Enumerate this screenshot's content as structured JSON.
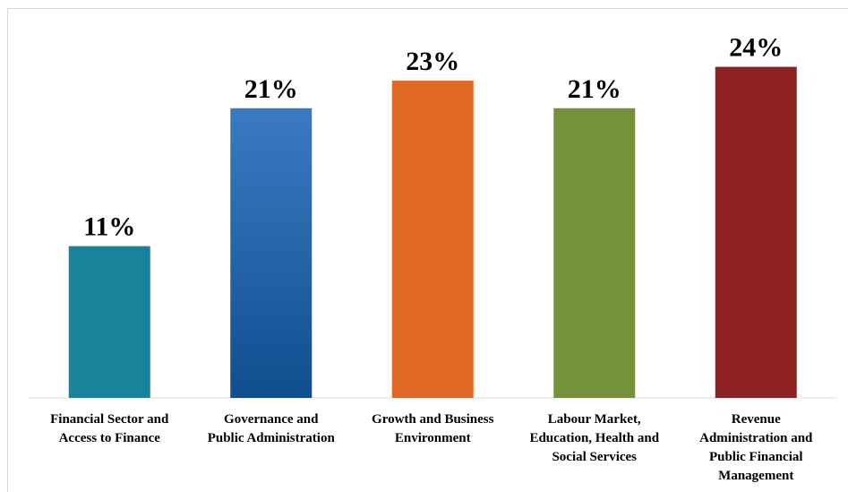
{
  "chart_data": {
    "type": "bar",
    "title": "",
    "xlabel": "",
    "ylabel": "",
    "ylim": [
      0,
      28
    ],
    "grid": false,
    "legend": "none",
    "categories": [
      [
        "Financial Sector and",
        "Access to Finance"
      ],
      [
        "Governance and",
        "Public Administration"
      ],
      [
        "Growth and Business",
        "Environment"
      ],
      [
        "Labour Market,",
        "Education, Health and",
        "Social Services"
      ],
      [
        "Revenue",
        "Administration and",
        "Public Financial",
        "Management"
      ]
    ],
    "values": [
      11,
      21,
      23,
      21,
      24
    ],
    "value_labels": [
      "11%",
      "21%",
      "23%",
      "21%",
      "24%"
    ],
    "colors": [
      "#17849b",
      "#2e6eb5",
      "#e06a25",
      "#739239",
      "#8e2220"
    ]
  }
}
